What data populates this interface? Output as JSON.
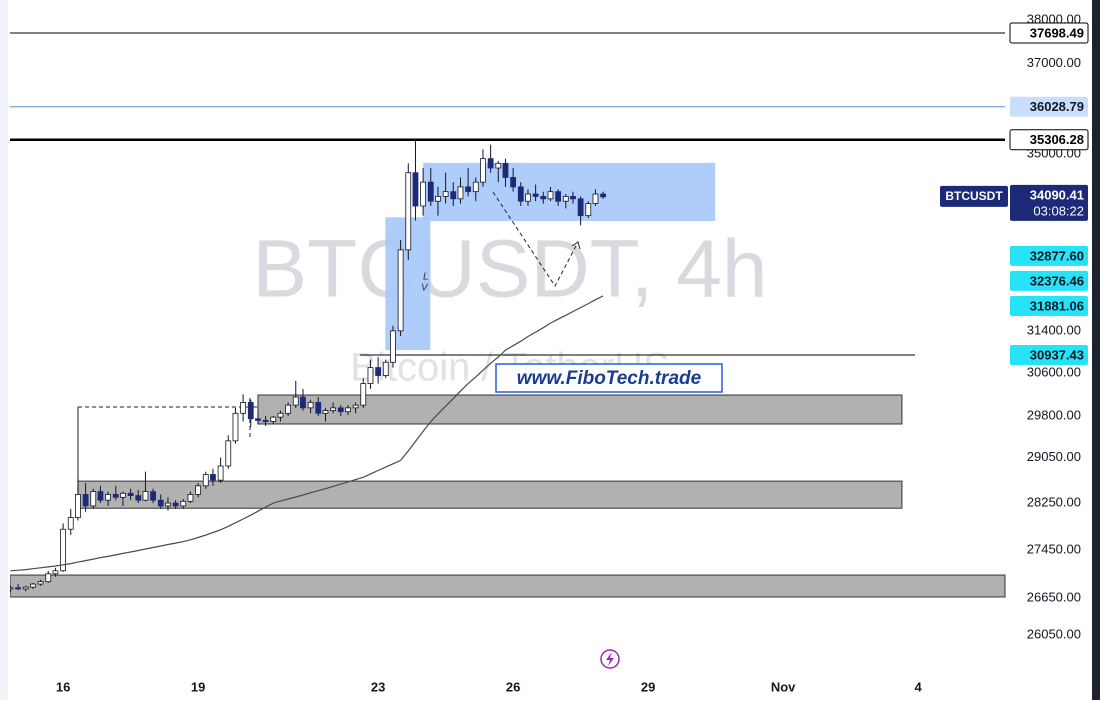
{
  "chart_data": {
    "type": "candlestick",
    "title": "BTCUSDT, 4h",
    "subtitle": "Bitcoin / TetherUS",
    "watermark": "www.FiboTech.trade",
    "annotations": [
      "L",
      "V"
    ],
    "log_scale": true,
    "x": [
      14.83,
      15.0,
      15.17,
      15.33,
      15.5,
      15.67,
      15.83,
      16.0,
      16.17,
      16.33,
      16.5,
      16.67,
      16.83,
      17.0,
      17.17,
      17.33,
      17.5,
      17.67,
      17.83,
      18.0,
      18.17,
      18.33,
      18.5,
      18.67,
      18.83,
      19.0,
      19.17,
      19.33,
      19.5,
      19.67,
      19.83,
      20.0,
      20.17,
      20.33,
      20.5,
      20.67,
      20.83,
      21.0,
      21.17,
      21.33,
      21.5,
      21.67,
      21.83,
      22.0,
      22.17,
      22.33,
      22.5,
      22.67,
      22.83,
      23.0,
      23.17,
      23.33,
      23.5,
      23.67,
      23.83,
      24.0,
      24.17,
      24.33,
      24.5,
      24.67,
      24.83,
      25.0,
      25.17,
      25.33,
      25.5,
      25.67,
      25.83,
      26.0,
      26.17,
      26.33,
      26.5,
      26.67,
      26.83,
      27.0,
      27.17,
      27.33,
      27.5,
      27.67,
      27.83,
      28.0
    ],
    "series": [
      {
        "name": "BTCUSDT",
        "up_color": "#ffffff",
        "down_color": "#1c2a78",
        "border_color": "#131722",
        "open": [
          26800,
          26820,
          26800,
          26830,
          26880,
          26920,
          27050,
          27100,
          27800,
          28000,
          28400,
          28200,
          28450,
          28300,
          28400,
          28350,
          28420,
          28380,
          28300,
          28450,
          28300,
          28200,
          28250,
          28200,
          28280,
          28400,
          28550,
          28750,
          28650,
          28900,
          29350,
          29850,
          30050,
          29750,
          29720,
          29700,
          29780,
          29850,
          30000,
          30150,
          29950,
          30050,
          29850,
          29900,
          29950,
          29880,
          29950,
          30000,
          30400,
          30700,
          30550,
          30800,
          31400,
          33000,
          34600,
          33900,
          34400,
          34000,
          34100,
          34200,
          34050,
          34300,
          34200,
          34400,
          34900,
          34700,
          34800,
          34500,
          34300,
          34000,
          34150,
          34100,
          34050,
          34200,
          34000,
          34100,
          34050,
          33700,
          33950,
          34150
        ],
        "high": [
          26850,
          26880,
          26850,
          26900,
          26950,
          27100,
          27150,
          27900,
          28150,
          28700,
          28600,
          28500,
          28550,
          28450,
          28550,
          28450,
          28500,
          28480,
          28800,
          28500,
          28400,
          28350,
          28300,
          28320,
          28450,
          28600,
          28800,
          28850,
          29050,
          29450,
          29950,
          30200,
          30100,
          29850,
          29800,
          29800,
          29900,
          30050,
          30450,
          30300,
          30100,
          30150,
          29950,
          30050,
          30000,
          30000,
          30050,
          30500,
          30850,
          30900,
          30850,
          31500,
          33200,
          34800,
          35306.28,
          34700,
          34700,
          34300,
          34600,
          34400,
          34500,
          34700,
          34500,
          35100,
          35200,
          34850,
          34900,
          34700,
          34400,
          34250,
          34350,
          34200,
          34300,
          34250,
          34150,
          34200,
          34100,
          34000,
          34250,
          34200
        ],
        "low": [
          26750,
          26780,
          26760,
          26800,
          26850,
          26900,
          27000,
          27080,
          27700,
          27950,
          28100,
          28150,
          28250,
          28200,
          28300,
          28200,
          28300,
          28250,
          28280,
          28250,
          28150,
          28120,
          28150,
          28150,
          28250,
          28350,
          28500,
          28550,
          28600,
          28850,
          29300,
          29700,
          29600,
          29650,
          29620,
          29650,
          29700,
          29800,
          29950,
          29900,
          29850,
          29800,
          29700,
          29850,
          29800,
          29820,
          29850,
          29950,
          30300,
          30400,
          30500,
          30700,
          31300,
          32800,
          33600,
          33700,
          33900,
          33700,
          33950,
          33900,
          33950,
          34100,
          34000,
          34300,
          34600,
          34400,
          34300,
          34200,
          33900,
          33900,
          34000,
          33950,
          34000,
          33900,
          33850,
          33950,
          33500,
          33650,
          33900,
          34050
        ],
        "close": [
          26820,
          26800,
          26830,
          26880,
          26920,
          27050,
          27100,
          27800,
          28000,
          28400,
          28200,
          28450,
          28300,
          28400,
          28350,
          28420,
          28380,
          28300,
          28450,
          28300,
          28200,
          28250,
          28200,
          28280,
          28400,
          28550,
          28750,
          28650,
          28900,
          29350,
          29850,
          30050,
          29750,
          29720,
          29700,
          29780,
          29850,
          30000,
          30150,
          29950,
          30050,
          29850,
          29900,
          29950,
          29880,
          29950,
          30000,
          30400,
          30700,
          30550,
          30800,
          31400,
          33000,
          34600,
          33900,
          34400,
          34000,
          34100,
          34200,
          34050,
          34300,
          34200,
          34400,
          34900,
          34700,
          34800,
          34500,
          34300,
          34000,
          34150,
          34100,
          34050,
          34200,
          34000,
          34100,
          34050,
          33700,
          33950,
          34150,
          34090.41
        ]
      }
    ],
    "ma": {
      "color": "#4a4a4a",
      "values": [
        27100,
        27110,
        27120,
        27135,
        27150,
        27165,
        27180,
        27200,
        27220,
        27245,
        27270,
        27295,
        27320,
        27340,
        27365,
        27390,
        27415,
        27440,
        27465,
        27490,
        27515,
        27540,
        27565,
        27590,
        27620,
        27660,
        27700,
        27745,
        27790,
        27850,
        27910,
        27975,
        28040,
        28110,
        28180,
        28250,
        28285,
        28320,
        28355,
        28390,
        28430,
        28465,
        28500,
        28540,
        28580,
        28620,
        28660,
        28700,
        28760,
        28820,
        28880,
        28940,
        29000,
        29170,
        29340,
        29520,
        29700,
        29840,
        29980,
        30120,
        30260,
        30400,
        30525,
        30650,
        30780,
        30900,
        31030,
        31115,
        31200,
        31290,
        31375,
        31460,
        31550,
        31625,
        31700,
        31775,
        31850,
        31930,
        32005,
        32080
      ]
    },
    "countdown": "03:08:22",
    "current_color": "#1c2a78",
    "xlim": [
      14.82,
      36.93
    ],
    "xticks": [
      16,
      19,
      23,
      26,
      29,
      {
        "value": 32,
        "label": "Nov"
      },
      {
        "value": 35,
        "label": "4"
      }
    ],
    "ylim": [
      25343,
      38469
    ],
    "yticks": [
      {
        "value": 38000,
        "label": "38000.00"
      },
      {
        "value": 37000,
        "label": "37000.00"
      },
      {
        "value": 35000,
        "label": "35000.00"
      },
      {
        "value": 31400,
        "label": "31400.00"
      },
      {
        "value": 30600,
        "label": "30600.00"
      },
      {
        "value": 29800,
        "label": "29800.00"
      },
      {
        "value": 29050,
        "label": "29050.00"
      },
      {
        "value": 28250,
        "label": "28250.00"
      },
      {
        "value": 27450,
        "label": "27450.00"
      },
      {
        "value": 26650,
        "label": "26650.00"
      },
      {
        "value": 26050,
        "label": "26050.00"
      }
    ],
    "price_labels": [
      {
        "value": 37698.49,
        "bg": "#ffffff",
        "fg": "#000000",
        "line": "#000000",
        "line_width": 1
      },
      {
        "value": 36028.79,
        "bg": "#c9defc",
        "fg": "#131722",
        "line": "#5b8fd8",
        "line_width": 1
      },
      {
        "value": 35306.28,
        "bg": "#ffffff",
        "fg": "#000000",
        "line": "#000000",
        "line_width": 2.5
      },
      {
        "value": 32877.6,
        "label": "32877.60",
        "bg": "#27e3f7",
        "fg": "#131722"
      },
      {
        "value": 32376.46,
        "bg": "#27e3f7",
        "fg": "#131722"
      },
      {
        "value": 31881.06,
        "bg": "#27e3f7",
        "fg": "#131722"
      },
      {
        "value": 30937.43,
        "bg": "#27e3f7",
        "fg": "#131722",
        "line": "#000000",
        "line_width": 1,
        "line_x": [
          22.6,
          34.93
        ]
      }
    ],
    "zones": [
      {
        "x": [
          20.33,
          34.64
        ],
        "y": [
          29655,
          30187
        ],
        "color": "#a9a9a9"
      },
      {
        "x": [
          16.33,
          34.64
        ],
        "y": [
          28161,
          28633
        ],
        "color": "#a9a9a9"
      },
      {
        "x": [
          14.82,
          36.93
        ],
        "y": [
          26668,
          27029
        ],
        "color": "#a9a9a9"
      },
      {
        "x": [
          23.16,
          24.16
        ],
        "y": [
          31031,
          33666
        ],
        "color": "#a6c8fb"
      },
      {
        "x": [
          24.0,
          30.49
        ],
        "y": [
          33589,
          34808
        ],
        "color": "#a6c8fb"
      }
    ]
  }
}
